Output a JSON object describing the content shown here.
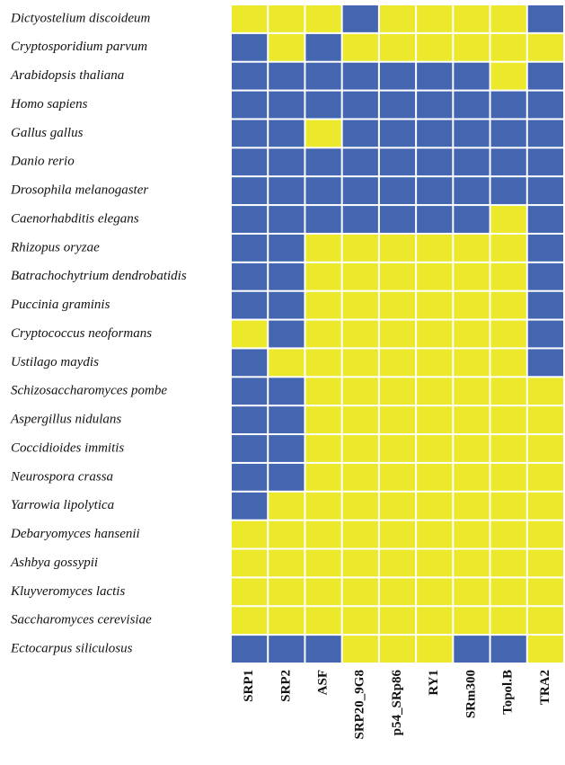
{
  "chart_data": {
    "type": "heatmap",
    "rows": [
      "Dictyostelium discoideum",
      "Cryptosporidium parvum",
      "Arabidopsis thaliana",
      "Homo sapiens",
      "Gallus gallus",
      "Danio rerio",
      "Drosophila melanogaster",
      "Caenorhabditis elegans",
      "Rhizopus oryzae",
      "Batrachochytrium dendrobatidis",
      "Puccinia graminis",
      "Cryptococcus neoformans",
      "Ustilago maydis",
      "Schizosaccharomyces pombe",
      "Aspergillus nidulans",
      "Coccidioides immitis",
      "Neurospora crassa",
      "Yarrowia lipolytica",
      "Debaryomyces hansenii",
      "Ashbya gossypii",
      "Kluyveromyces lactis",
      "Saccharomyces cerevisiae",
      "Ectocarpus siliculosus"
    ],
    "columns": [
      "SRP1",
      "SRP2",
      "ASF",
      "SRP20_9G8",
      "p54_SRp86",
      "RY1",
      "SRm300",
      "Topol.B",
      "TRA2"
    ],
    "colors": [
      "#ece82b",
      "#4466b1"
    ],
    "values": [
      [
        0,
        0,
        0,
        1,
        0,
        0,
        0,
        0,
        1
      ],
      [
        1,
        0,
        1,
        0,
        0,
        0,
        0,
        0,
        0
      ],
      [
        1,
        1,
        1,
        1,
        1,
        1,
        1,
        0,
        1
      ],
      [
        1,
        1,
        1,
        1,
        1,
        1,
        1,
        1,
        1
      ],
      [
        1,
        1,
        0,
        1,
        1,
        1,
        1,
        1,
        1
      ],
      [
        1,
        1,
        1,
        1,
        1,
        1,
        1,
        1,
        1
      ],
      [
        1,
        1,
        1,
        1,
        1,
        1,
        1,
        1,
        1
      ],
      [
        1,
        1,
        1,
        1,
        1,
        1,
        1,
        0,
        1
      ],
      [
        1,
        1,
        0,
        0,
        0,
        0,
        0,
        0,
        1
      ],
      [
        1,
        1,
        0,
        0,
        0,
        0,
        0,
        0,
        1
      ],
      [
        1,
        1,
        0,
        0,
        0,
        0,
        0,
        0,
        1
      ],
      [
        0,
        1,
        0,
        0,
        0,
        0,
        0,
        0,
        1
      ],
      [
        1,
        0,
        0,
        0,
        0,
        0,
        0,
        0,
        1
      ],
      [
        1,
        1,
        0,
        0,
        0,
        0,
        0,
        0,
        0
      ],
      [
        1,
        1,
        0,
        0,
        0,
        0,
        0,
        0,
        0
      ],
      [
        1,
        1,
        0,
        0,
        0,
        0,
        0,
        0,
        0
      ],
      [
        1,
        1,
        0,
        0,
        0,
        0,
        0,
        0,
        0
      ],
      [
        1,
        0,
        0,
        0,
        0,
        0,
        0,
        0,
        0
      ],
      [
        0,
        0,
        0,
        0,
        0,
        0,
        0,
        0,
        0
      ],
      [
        0,
        0,
        0,
        0,
        0,
        0,
        0,
        0,
        0
      ],
      [
        0,
        0,
        0,
        0,
        0,
        0,
        0,
        0,
        0
      ],
      [
        0,
        0,
        0,
        0,
        0,
        0,
        0,
        0,
        0
      ],
      [
        1,
        1,
        1,
        0,
        0,
        0,
        1,
        1,
        0
      ]
    ]
  }
}
